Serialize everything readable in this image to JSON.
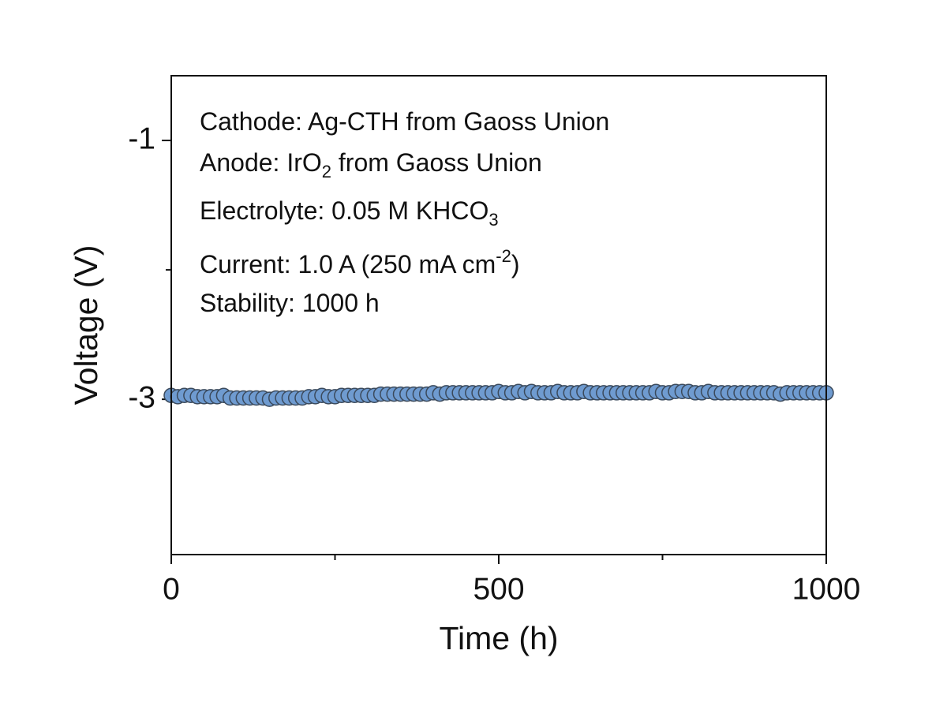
{
  "chart_data": {
    "type": "scatter",
    "xlabel": "Time (h)",
    "ylabel": "Voltage (V)",
    "xlim": [
      0,
      1000
    ],
    "xticks": [
      0,
      500,
      1000
    ],
    "xminorticks": [
      250,
      750
    ],
    "ylim": [
      -4.2,
      -0.5
    ],
    "yticks": [
      -1,
      -3
    ],
    "yminorticks": [
      -2
    ],
    "annotations": [
      [
        {
          "text": "Cathode: Ag-CTH from Gaoss Union"
        }
      ],
      [
        {
          "text": "Anode: IrO"
        },
        {
          "text": "2",
          "shift": "sub"
        },
        {
          "text": " from Gaoss Union"
        }
      ],
      [
        {
          "text": "Electrolyte: 0.05 M KHCO"
        },
        {
          "text": "3",
          "shift": "sub"
        }
      ],
      [
        {
          "text": "Current: 1.0 A (250 mA cm"
        },
        {
          "text": "-2",
          "shift": "super"
        },
        {
          "text": ")"
        }
      ],
      [
        {
          "text": "Stability: 1000 h"
        }
      ]
    ],
    "series": [
      {
        "color": "#6f9bd0",
        "edgecolor": "#3b4a5c",
        "x": [
          0,
          10,
          20,
          30,
          40,
          50,
          60,
          70,
          80,
          90,
          100,
          110,
          120,
          130,
          140,
          150,
          160,
          170,
          180,
          190,
          200,
          210,
          220,
          230,
          240,
          250,
          260,
          270,
          280,
          290,
          300,
          310,
          320,
          330,
          340,
          350,
          360,
          370,
          380,
          390,
          400,
          410,
          420,
          430,
          440,
          450,
          460,
          470,
          480,
          490,
          500,
          510,
          520,
          530,
          540,
          550,
          560,
          570,
          580,
          590,
          600,
          610,
          620,
          630,
          640,
          650,
          660,
          670,
          680,
          690,
          700,
          710,
          720,
          730,
          740,
          750,
          760,
          770,
          780,
          790,
          800,
          810,
          820,
          830,
          840,
          850,
          860,
          870,
          880,
          890,
          900,
          910,
          920,
          930,
          940,
          950,
          960,
          970,
          980,
          990,
          1000
        ],
        "values": [
          -2.97,
          -2.98,
          -2.97,
          -2.97,
          -2.98,
          -2.98,
          -2.98,
          -2.98,
          -2.97,
          -2.99,
          -2.99,
          -2.99,
          -2.99,
          -2.99,
          -2.99,
          -3.0,
          -2.99,
          -2.99,
          -2.99,
          -2.99,
          -2.99,
          -2.98,
          -2.98,
          -2.97,
          -2.98,
          -2.98,
          -2.97,
          -2.97,
          -2.97,
          -2.97,
          -2.97,
          -2.97,
          -2.96,
          -2.96,
          -2.96,
          -2.96,
          -2.96,
          -2.96,
          -2.96,
          -2.96,
          -2.95,
          -2.96,
          -2.95,
          -2.95,
          -2.95,
          -2.95,
          -2.95,
          -2.95,
          -2.95,
          -2.95,
          -2.94,
          -2.95,
          -2.95,
          -2.94,
          -2.95,
          -2.94,
          -2.95,
          -2.95,
          -2.95,
          -2.94,
          -2.95,
          -2.95,
          -2.95,
          -2.94,
          -2.95,
          -2.95,
          -2.95,
          -2.95,
          -2.95,
          -2.95,
          -2.95,
          -2.95,
          -2.95,
          -2.95,
          -2.94,
          -2.95,
          -2.95,
          -2.94,
          -2.94,
          -2.94,
          -2.95,
          -2.95,
          -2.94,
          -2.95,
          -2.95,
          -2.95,
          -2.95,
          -2.95,
          -2.95,
          -2.95,
          -2.95,
          -2.95,
          -2.95,
          -2.96,
          -2.95,
          -2.95,
          -2.95,
          -2.95,
          -2.95,
          -2.95,
          -2.95
        ]
      }
    ]
  }
}
